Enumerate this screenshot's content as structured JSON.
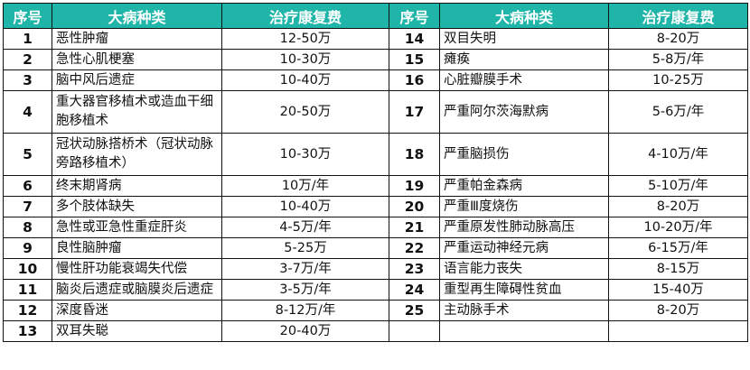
{
  "headers": [
    "序号",
    "大病种类",
    "治疗康复费",
    "序号",
    "大病种类",
    "治疗康复费"
  ],
  "rows": [
    {
      "l": {
        "no": "1",
        "name": "恶性肿瘤",
        "cost": "12-50万"
      },
      "r": {
        "no": "14",
        "name": "双目失明",
        "cost": "8-20万"
      }
    },
    {
      "l": {
        "no": "2",
        "name": "急性心肌梗塞",
        "cost": "10-30万"
      },
      "r": {
        "no": "15",
        "name": "瘫痪",
        "cost": "5-8万/年"
      }
    },
    {
      "l": {
        "no": "3",
        "name": "脑中风后遗症",
        "cost": "10-40万"
      },
      "r": {
        "no": "16",
        "name": "心脏瓣膜手术",
        "cost": "10-25万"
      }
    },
    {
      "l": {
        "no": "4",
        "name": "重大器官移植术或造血干细胞移植术",
        "cost": "20-50万"
      },
      "r": {
        "no": "17",
        "name": "严重阿尔茨海默病",
        "cost": "5-6万/年"
      }
    },
    {
      "l": {
        "no": "5",
        "name": "冠状动脉搭桥术（冠状动脉旁路移植术）",
        "cost": "10-30万"
      },
      "r": {
        "no": "18",
        "name": "严重脑损伤",
        "cost": "4-10万/年"
      }
    },
    {
      "l": {
        "no": "6",
        "name": "终末期肾病",
        "cost": "10万/年"
      },
      "r": {
        "no": "19",
        "name": "严重帕金森病",
        "cost": "5-10万/年"
      }
    },
    {
      "l": {
        "no": "7",
        "name": "多个肢体缺失",
        "cost": "10-40万"
      },
      "r": {
        "no": "20",
        "name": "严重Ⅲ度烧伤",
        "cost": "8-20万"
      }
    },
    {
      "l": {
        "no": "8",
        "name": "急性或亚急性重症肝炎",
        "cost": "4-5万/年"
      },
      "r": {
        "no": "21",
        "name": "严重原发性肺动脉高压",
        "cost": "10-20万/年"
      }
    },
    {
      "l": {
        "no": "9",
        "name": "良性脑肿瘤",
        "cost": "5-25万"
      },
      "r": {
        "no": "22",
        "name": "严重运动神经元病",
        "cost": "6-15万/年"
      }
    },
    {
      "l": {
        "no": "10",
        "name": "慢性肝功能衰竭失代偿",
        "cost": "3-7万/年"
      },
      "r": {
        "no": "23",
        "name": "语言能力丧失",
        "cost": "8-15万"
      }
    },
    {
      "l": {
        "no": "11",
        "name": "脑炎后遗症或脑膜炎后遗症",
        "cost": "3-5万/年"
      },
      "r": {
        "no": "24",
        "name": "重型再生障碍性贫血",
        "cost": "15-40万"
      }
    },
    {
      "l": {
        "no": "12",
        "name": "深度昏迷",
        "cost": "8-12万/年"
      },
      "r": {
        "no": "25",
        "name": "主动脉手术",
        "cost": "8-20万"
      }
    },
    {
      "l": {
        "no": "13",
        "name": "双耳失聪",
        "cost": "20-40万"
      },
      "r": {
        "no": "",
        "name": "",
        "cost": ""
      }
    }
  ]
}
